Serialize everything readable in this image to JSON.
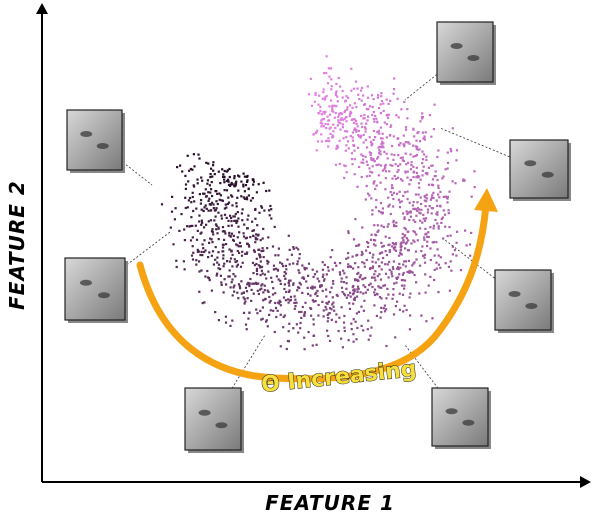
{
  "axes": {
    "x_label": "FEATURE 1",
    "y_label": "FEATURE 2"
  },
  "annotation": "Θ Increasing"
}
